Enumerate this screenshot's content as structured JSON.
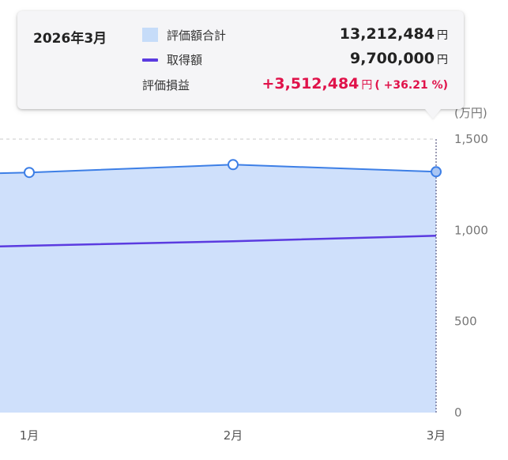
{
  "chart_data": {
    "type": "area",
    "categories": [
      "1月",
      "2月",
      "3月"
    ],
    "series": [
      {
        "name": "評価額合計",
        "type": "area",
        "values": [
          1317,
          1360,
          1321
        ],
        "color": "#3d7fe6",
        "fill": "#cfe0fb"
      },
      {
        "name": "取得額",
        "type": "line",
        "values": [
          915,
          940,
          970
        ],
        "color": "#5b3be0"
      }
    ],
    "y_ticks": [
      "0",
      "500",
      "1,000",
      "1,500"
    ],
    "y_tick_values": [
      0,
      500,
      1000,
      1500
    ],
    "ylim": [
      0,
      1500
    ],
    "y_unit": "(万円)",
    "grid": true,
    "y_axis_side": "right"
  },
  "tooltip": {
    "date": "2026年3月",
    "rows": [
      {
        "name": "評価額合計",
        "value": "13,212,484",
        "unit": "円"
      },
      {
        "name": "取得額",
        "value": "9,700,000",
        "unit": "円"
      },
      {
        "name": "評価損益",
        "value": "+3,512,484",
        "unit": "円",
        "pct": "( +36.21 %)"
      }
    ]
  }
}
